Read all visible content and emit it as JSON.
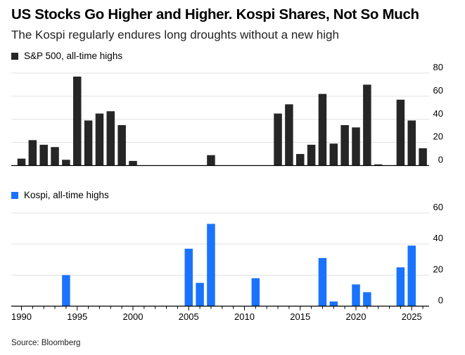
{
  "title": "US Stocks Go Higher and Higher. Kospi Shares, Not So Much",
  "subtitle": "The Kospi regularly endures long droughts without a new high",
  "source": "Source: Bloomberg",
  "colors": {
    "sp500": "#262626",
    "kospi": "#1a73ff"
  },
  "chart_data": [
    {
      "type": "bar",
      "series_name": "S&P 500, all-time highs",
      "x": [
        1990,
        1991,
        1992,
        1993,
        1994,
        1995,
        1996,
        1997,
        1998,
        1999,
        2000,
        2001,
        2002,
        2003,
        2004,
        2005,
        2006,
        2007,
        2008,
        2009,
        2010,
        2011,
        2012,
        2013,
        2014,
        2015,
        2016,
        2017,
        2018,
        2019,
        2020,
        2021,
        2022,
        2023,
        2024,
        2025,
        2026
      ],
      "values": [
        6,
        22,
        18,
        16,
        5,
        77,
        39,
        45,
        47,
        35,
        4,
        0,
        0,
        0,
        0,
        0,
        0,
        9,
        0,
        0,
        0,
        0,
        0,
        45,
        53,
        10,
        18,
        62,
        19,
        35,
        33,
        70,
        1,
        0,
        57,
        39,
        15
      ],
      "ylim": [
        0,
        80
      ],
      "yticks": [
        0,
        20,
        40,
        60,
        80
      ],
      "grid": true
    },
    {
      "type": "bar",
      "series_name": "Kospi, all-time highs",
      "x": [
        1990,
        1991,
        1992,
        1993,
        1994,
        1995,
        1996,
        1997,
        1998,
        1999,
        2000,
        2001,
        2002,
        2003,
        2004,
        2005,
        2006,
        2007,
        2008,
        2009,
        2010,
        2011,
        2012,
        2013,
        2014,
        2015,
        2016,
        2017,
        2018,
        2019,
        2020,
        2021,
        2022,
        2023,
        2024,
        2025,
        2026
      ],
      "values": [
        0,
        0,
        0,
        0,
        20,
        0,
        0,
        0,
        0,
        0,
        0,
        0,
        0,
        0,
        0,
        37,
        15,
        53,
        0,
        0,
        0,
        18,
        0,
        0,
        0,
        0,
        0,
        31,
        3,
        0,
        14,
        9,
        0,
        0,
        25,
        39,
        0
      ],
      "ylim": [
        0,
        60
      ],
      "yticks": [
        0,
        20,
        40,
        60
      ],
      "grid": true,
      "xticks": [
        "1990",
        "1995",
        "2000",
        "2005",
        "2010",
        "2015",
        "2020",
        "2025"
      ]
    }
  ]
}
